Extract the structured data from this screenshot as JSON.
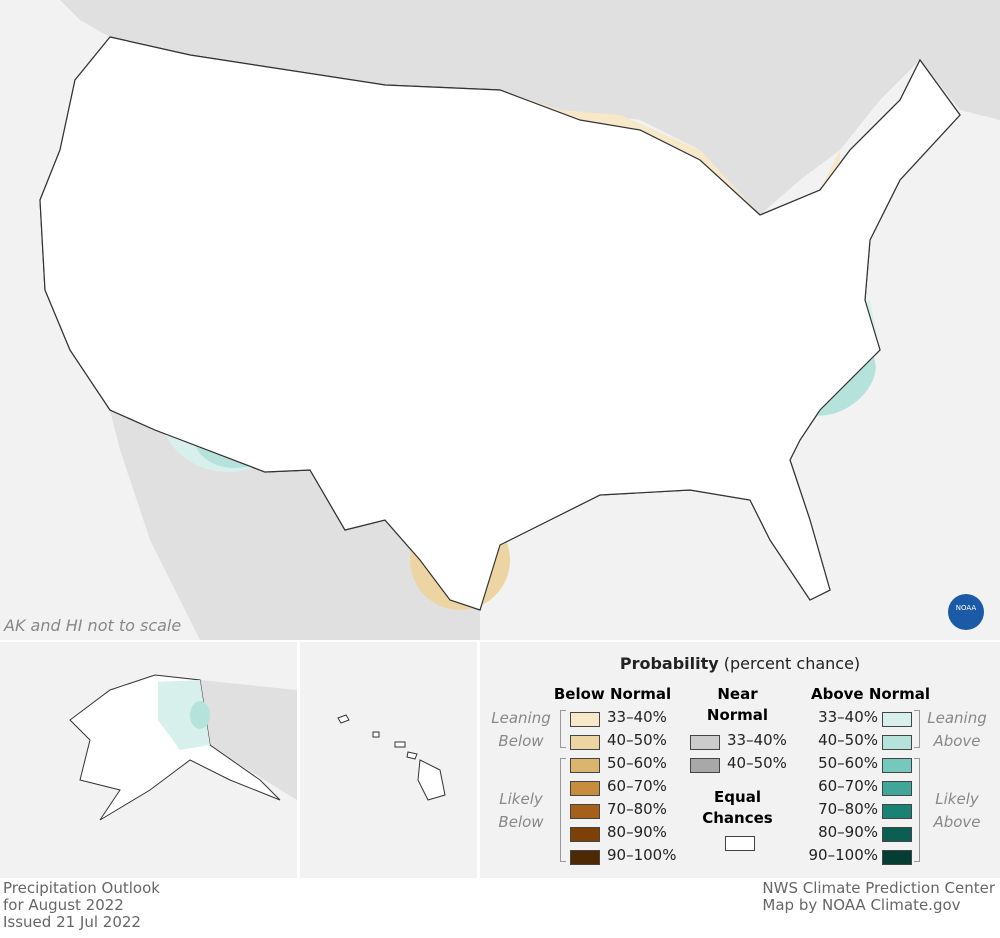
{
  "map_note": "AK and HI not to scale",
  "logo": "NOAA",
  "legend": {
    "title": "Probability",
    "subtitle": "(percent chance)",
    "below": {
      "heading": "Below Normal",
      "leaning": "Leaning Below",
      "likely": "Likely Below",
      "entries": [
        {
          "label": "33–40%",
          "color": "#f6e8c8"
        },
        {
          "label": "40–50%",
          "color": "#ecd5a3"
        },
        {
          "label": "50–60%",
          "color": "#d9b56e"
        },
        {
          "label": "60–70%",
          "color": "#c68d3c"
        },
        {
          "label": "70–80%",
          "color": "#a6601c"
        },
        {
          "label": "80–90%",
          "color": "#7d4108"
        },
        {
          "label": "90–100%",
          "color": "#4d2a05"
        }
      ]
    },
    "near": {
      "heading": "Near Normal",
      "entries": [
        {
          "label": "33–40%",
          "color": "#cccccc"
        },
        {
          "label": "40–50%",
          "color": "#a8a8a8"
        }
      ]
    },
    "equal": {
      "heading": "Equal Chances",
      "color": "#ffffff"
    },
    "above": {
      "heading": "Above Normal",
      "leaning": "Leaning Above",
      "likely": "Likely Above",
      "entries": [
        {
          "label": "33–40%",
          "color": "#d8f0ec"
        },
        {
          "label": "40–50%",
          "color": "#b5e3dc"
        },
        {
          "label": "50–60%",
          "color": "#76c7bc"
        },
        {
          "label": "60–70%",
          "color": "#3fa699"
        },
        {
          "label": "70–80%",
          "color": "#1a8275"
        },
        {
          "label": "80–90%",
          "color": "#0b5f52"
        },
        {
          "label": "90–100%",
          "color": "#033d34"
        }
      ]
    }
  },
  "footer": {
    "left": [
      "Precipitation Outlook",
      "for August 2022",
      "Issued 21 Jul 2022"
    ],
    "right": [
      "NWS Climate Prediction Center",
      "Map by NOAA Climate.gov"
    ]
  }
}
